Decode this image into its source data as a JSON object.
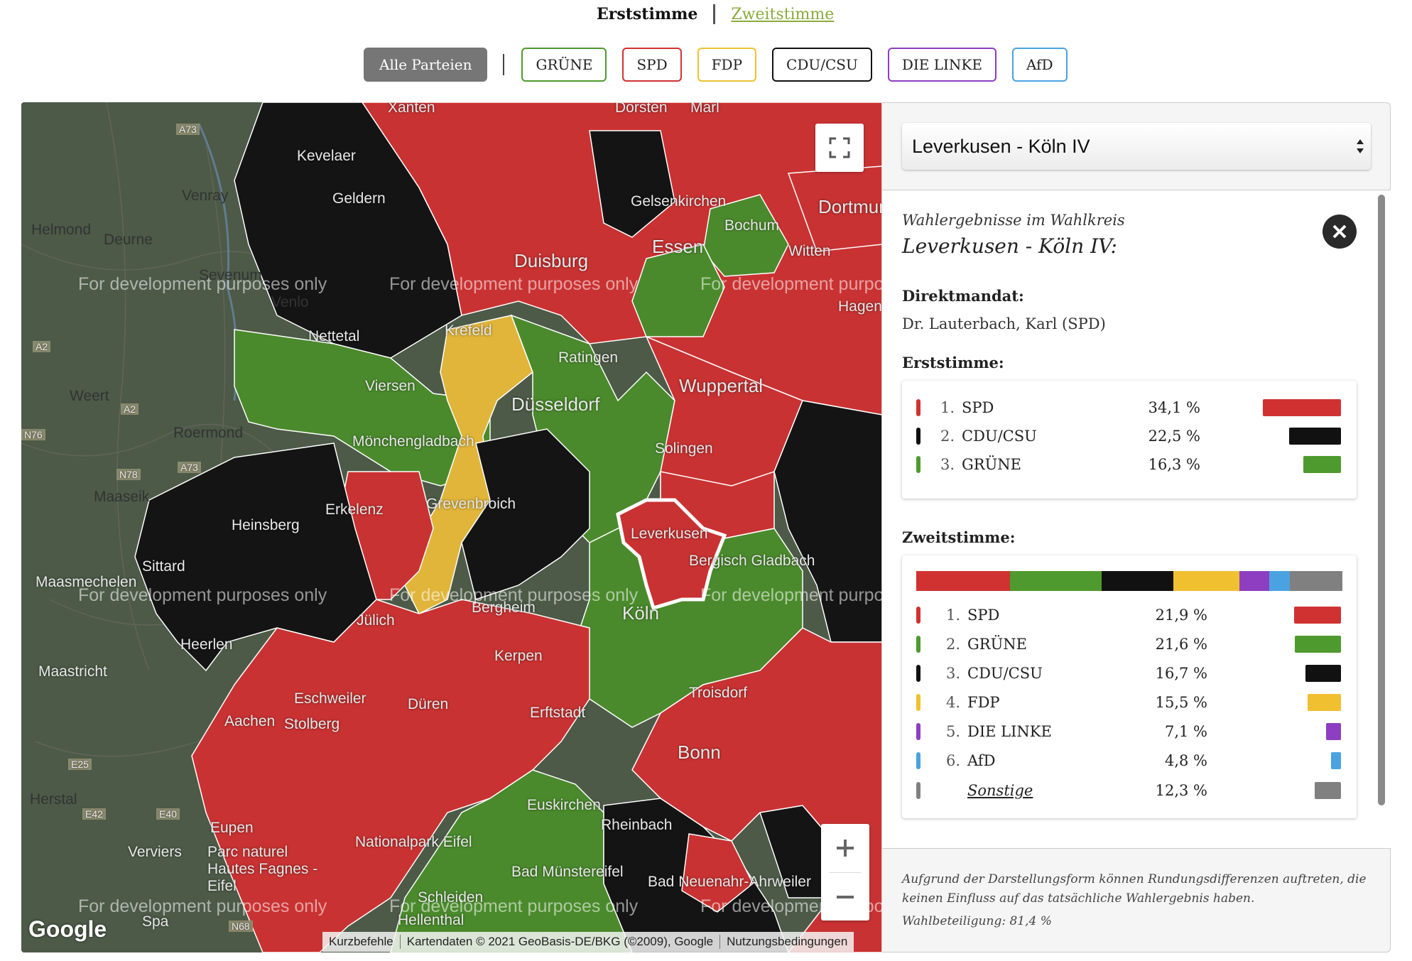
{
  "vote_toggle": {
    "first": "Erststimme",
    "second": "Zweitstimme"
  },
  "party_filters": [
    {
      "label": "Alle Parteien",
      "color": "#767676",
      "active": true
    },
    {
      "label": "GRÜNE",
      "color": "#4f9a2e"
    },
    {
      "label": "SPD",
      "color": "#d03232"
    },
    {
      "label": "FDP",
      "color": "#f0c030"
    },
    {
      "label": "CDU/CSU",
      "color": "#111111"
    },
    {
      "label": "DIE LINKE",
      "color": "#8e3ec0"
    },
    {
      "label": "AfD",
      "color": "#4aa3e0"
    }
  ],
  "map": {
    "place_labels": [
      "Kevelaer",
      "Geldern",
      "Venray",
      "Helmond",
      "Deurne",
      "Sevenum",
      "Venlo",
      "Nettetal",
      "Viersen",
      "Weert",
      "Roermond",
      "Mönchengladbach",
      "Maaseik",
      "Heinsberg",
      "Erkelenz",
      "Sittard",
      "Maasmechelen",
      "Jülich",
      "Heerlen",
      "Maastricht",
      "Eschweiler",
      "Aachen",
      "Stolberg",
      "Düren",
      "Kerpen",
      "Bergheim",
      "Erftstadt",
      "Euskirchen",
      "Rheinbach",
      "Bonn",
      "Troisdorf",
      "Bergisch Gladbach",
      "Köln",
      "Leverkusen",
      "Solingen",
      "Wuppertal",
      "Düsseldorf",
      "Ratingen",
      "Krefeld",
      "Duisburg",
      "Essen",
      "Gelsenkirchen",
      "Bochum",
      "Witten",
      "Dortmund",
      "Hagen",
      "Grevenbroich",
      "Eupen",
      "Verviers",
      "Parc naturel Hautes Fagnes - Eifel",
      "Nationalpark Eifel",
      "Bad Münstereifel",
      "Bad Neuenahr-Ahrweiler",
      "Herstal",
      "Spa",
      "Hellenthal",
      "Schleiden",
      "Xanten",
      "Dorsten",
      "Marl"
    ],
    "road_labels": [
      "A73",
      "A2",
      "N76",
      "N78",
      "E25",
      "E42",
      "E40",
      "N68",
      "A73",
      "A2"
    ],
    "watermark": "For development purposes only",
    "google_logo": "Google",
    "attribution": [
      "Kurzbefehle",
      "Kartendaten © 2021 GeoBasis-DE/BKG (©2009), Google",
      "Nutzungsbedingungen"
    ],
    "colors": {
      "spd": "#c93232",
      "gruene": "#4a8a2c",
      "cdu": "#141414",
      "fdp": "#e0b53a",
      "selected_outline": "#ffffff"
    }
  },
  "panel": {
    "selected_district": "Leverkusen - Köln IV",
    "heading": "Wahlergebnisse im Wahlkreis",
    "district_title": "Leverkusen - Köln IV:",
    "direct_mandate_title": "Direktmandat:",
    "direct_mandate_name": "Dr. Lauterbach, Karl (SPD)",
    "first_vote_title": "Erststimme:",
    "first_vote": [
      {
        "rank": "1.",
        "party": "SPD",
        "pct": "34,1 %",
        "value": 34.1,
        "color": "#d03232"
      },
      {
        "rank": "2.",
        "party": "CDU/CSU",
        "pct": "22,5 %",
        "value": 22.5,
        "color": "#111111"
      },
      {
        "rank": "3.",
        "party": "GRÜNE",
        "pct": "16,3 %",
        "value": 16.3,
        "color": "#4f9a2e"
      }
    ],
    "second_vote_title": "Zweitstimme:",
    "second_vote": [
      {
        "rank": "1.",
        "party": "SPD",
        "pct": "21,9 %",
        "value": 21.9,
        "color": "#d03232"
      },
      {
        "rank": "2.",
        "party": "GRÜNE",
        "pct": "21,6 %",
        "value": 21.6,
        "color": "#4f9a2e"
      },
      {
        "rank": "3.",
        "party": "CDU/CSU",
        "pct": "16,7 %",
        "value": 16.7,
        "color": "#111111"
      },
      {
        "rank": "4.",
        "party": "FDP",
        "pct": "15,5 %",
        "value": 15.5,
        "color": "#f0c030"
      },
      {
        "rank": "5.",
        "party": "DIE LINKE",
        "pct": "7,1 %",
        "value": 7.1,
        "color": "#8e3ec0"
      },
      {
        "rank": "6.",
        "party": "AfD",
        "pct": "4,8 %",
        "value": 4.8,
        "color": "#4aa3e0"
      },
      {
        "rank": "",
        "party": "Sonstige",
        "pct": "12,3 %",
        "value": 12.3,
        "color": "#808080"
      }
    ],
    "footnote": "Aufgrund der Darstellungsform können Rundungsdifferenzen auftreten, die keinen Einfluss auf das tatsächliche Wahlergebnis haben.",
    "turnout": "Wahlbeteiligung: 81,4 %"
  }
}
